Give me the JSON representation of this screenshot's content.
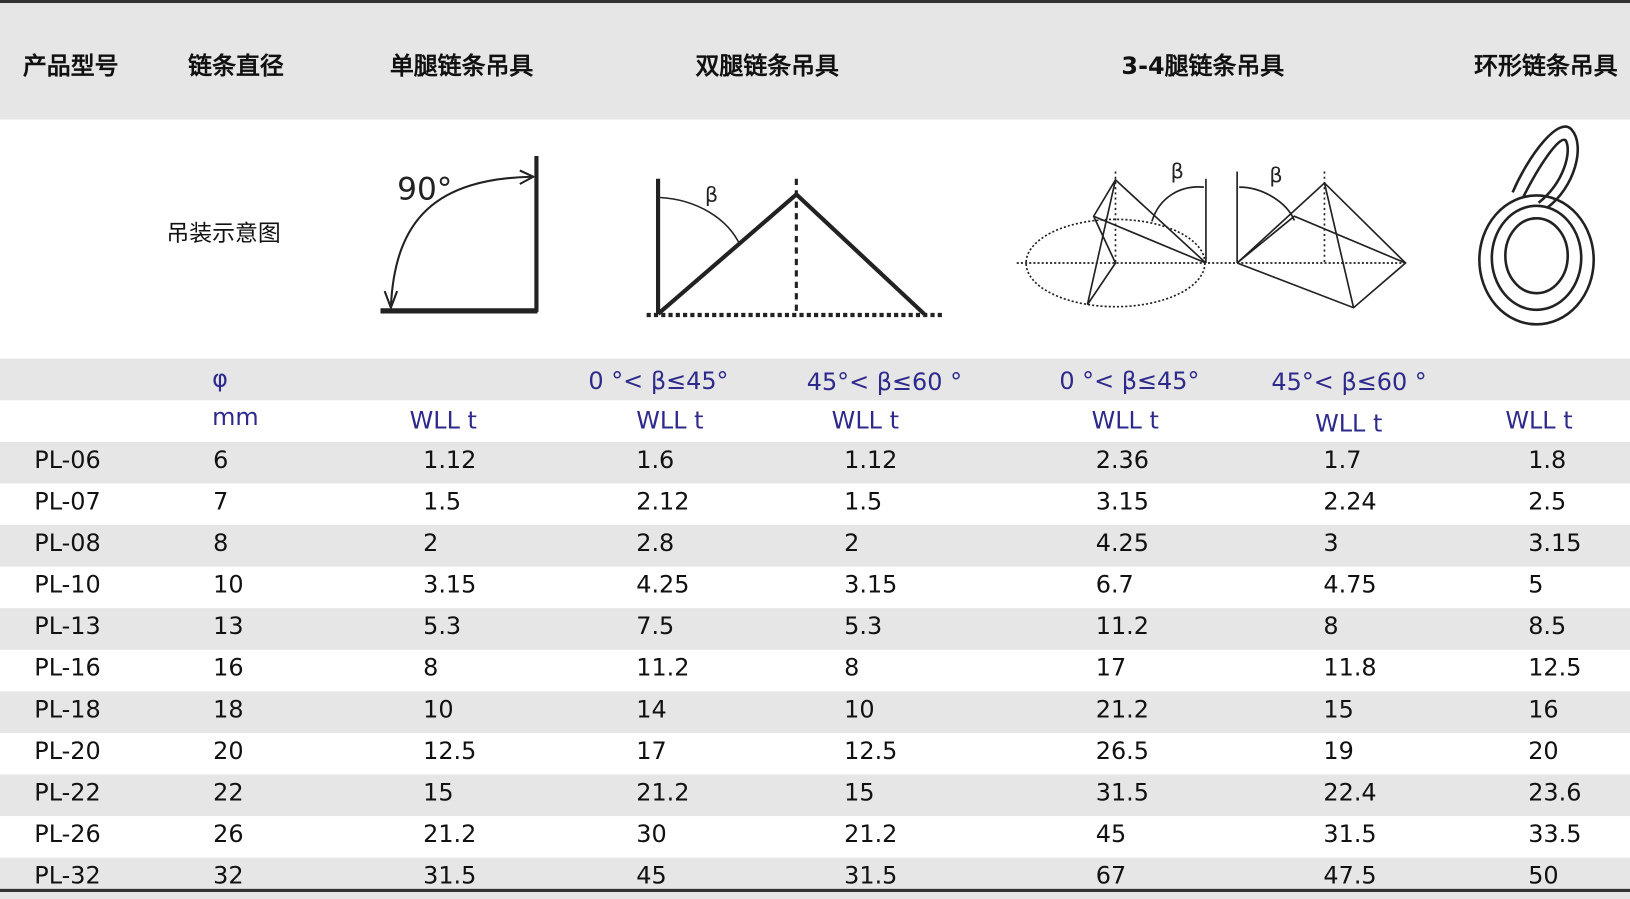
{
  "headers": [
    "产品型号",
    "链条直径",
    "单腿链条吊具",
    "双腿链条吊具",
    "3-4腿链条吊具",
    "环形链条吊具"
  ],
  "diagram_label": "吊装示意图",
  "diagram_text": {
    "angle_90": "90°",
    "beta": "β"
  },
  "angle_row": {
    "diameter_symbol": "φ",
    "double_a": "0 °< β≤45°",
    "double_b": "45°< β≤60 °",
    "multi_a": "0 °< β≤45°",
    "multi_b": "45°< β≤60 °"
  },
  "unit_row": {
    "diameter_unit": "mm",
    "single": "WLL t",
    "double_a": "WLL t",
    "double_b": "WLL t",
    "multi_a": "WLL t",
    "multi_b": "WLL t",
    "ring": "WLL t"
  },
  "rows": [
    [
      "PL-06",
      "6",
      "1.12",
      "1.6",
      "1.12",
      "2.36",
      "1.7",
      "1.8"
    ],
    [
      "PL-07",
      "7",
      "1.5",
      "2.12",
      "1.5",
      "3.15",
      "2.24",
      "2.5"
    ],
    [
      "PL-08",
      "8",
      "2",
      "2.8",
      "2",
      "4.25",
      "3",
      "3.15"
    ],
    [
      "PL-10",
      "10",
      "3.15",
      "4.25",
      "3.15",
      "6.7",
      "4.75",
      "5"
    ],
    [
      "PL-13",
      "13",
      "5.3",
      "7.5",
      "5.3",
      "11.2",
      "8",
      "8.5"
    ],
    [
      "PL-16",
      "16",
      "8",
      "11.2",
      "8",
      "17",
      "11.8",
      "12.5"
    ],
    [
      "PL-18",
      "18",
      "10",
      "14",
      "10",
      "21.2",
      "15",
      "16"
    ],
    [
      "PL-20",
      "20",
      "12.5",
      "17",
      "12.5",
      "26.5",
      "19",
      "20"
    ],
    [
      "PL-22",
      "22",
      "15",
      "21.2",
      "15",
      "31.5",
      "22.4",
      "23.6"
    ],
    [
      "PL-26",
      "26",
      "21.2",
      "30",
      "21.2",
      "45",
      "31.5",
      "33.5"
    ],
    [
      "PL-32",
      "32",
      "31.5",
      "45",
      "31.5",
      "67",
      "47.5",
      "50"
    ]
  ]
}
